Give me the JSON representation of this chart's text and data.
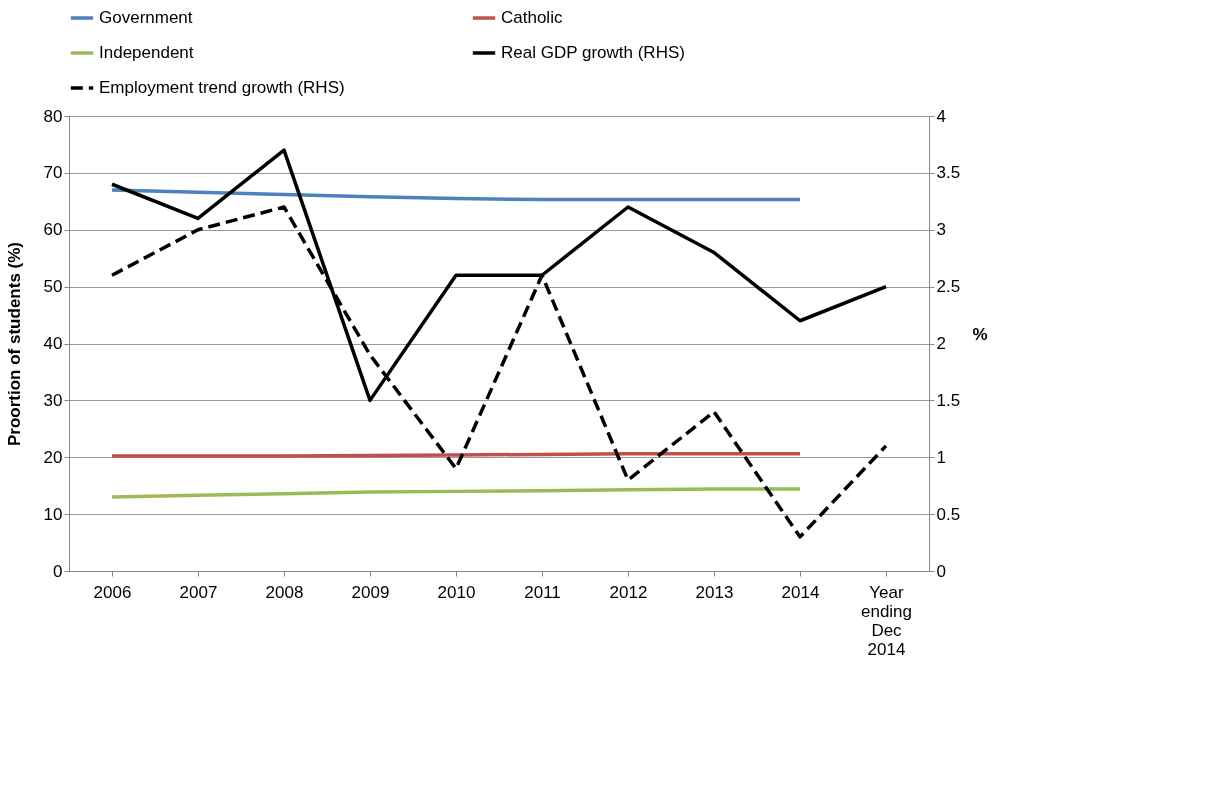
{
  "chart_data": {
    "type": "line",
    "categories": [
      "2006",
      "2007",
      "2008",
      "2009",
      "2010",
      "2011",
      "2012",
      "2013",
      "2014",
      "Year ending Dec 2014"
    ],
    "ylabel": "Proortion of students (%)",
    "y2label": "%",
    "ylim": [
      0,
      80
    ],
    "yticks": [
      0,
      10,
      20,
      30,
      40,
      50,
      60,
      70,
      80
    ],
    "y2lim": [
      0,
      4
    ],
    "y2ticks": [
      0,
      0.5,
      1,
      1.5,
      2,
      2.5,
      3,
      3.5,
      4
    ],
    "grid": "y",
    "legend": "top",
    "marker": "none",
    "line_style": "solid",
    "series": [
      {
        "name": "Government",
        "color": "#4f81bd",
        "values": [
          67,
          66.6,
          66.2,
          65.8,
          65.5,
          65.3,
          65.3,
          65.3,
          65.3,
          null
        ]
      },
      {
        "name": "Catholic",
        "color": "#c0504d",
        "values": [
          20.2,
          20.2,
          20.2,
          20.3,
          20.4,
          20.5,
          20.6,
          20.6,
          20.6,
          null
        ]
      },
      {
        "name": "Independent",
        "color": "#9bbb59",
        "values": [
          13,
          13.3,
          13.6,
          13.9,
          14,
          14.1,
          14.3,
          14.4,
          14.4,
          null
        ]
      },
      {
        "name": "Real GDP growth (RHS)",
        "color": "#000000",
        "axis": "y2",
        "values": [
          3.4,
          3.1,
          3.7,
          1.5,
          2.6,
          2.6,
          3.2,
          2.8,
          2.2,
          2.5
        ]
      },
      {
        "name": "Employment trend growth (RHS)",
        "color": "#000000",
        "axis": "y2",
        "line_style": "dashed",
        "values": [
          2.6,
          3.0,
          3.2,
          1.9,
          0.9,
          2.6,
          0.8,
          1.4,
          0.3,
          1.1
        ]
      }
    ]
  }
}
